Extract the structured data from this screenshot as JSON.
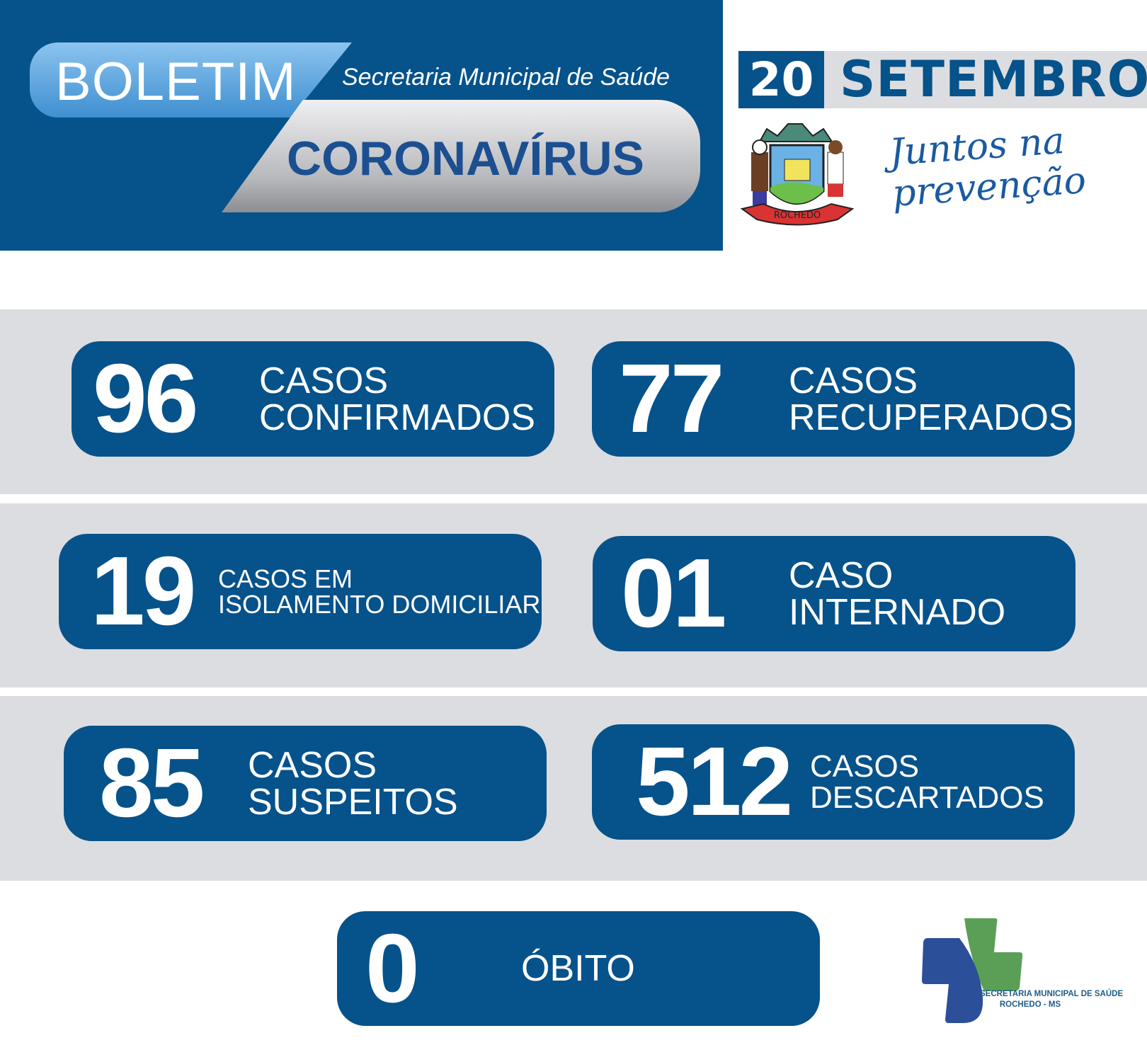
{
  "header": {
    "boletim": "BOLETIM",
    "secretaria": "Secretaria Municipal de Saúde",
    "coronavirus": "CORONAVÍRUS",
    "date_day": "20",
    "date_month": "SETEMBRO",
    "crest_text": "ROCHEDO",
    "slogan_line1": "Juntos na",
    "slogan_line2": "prevenção"
  },
  "stats": [
    {
      "value": "96",
      "line1": "CASOS",
      "line2": "CONFIRMADOS"
    },
    {
      "value": "77",
      "line1": "CASOS",
      "line2": "RECUPERADOS"
    },
    {
      "value": "19",
      "line1": "CASOS EM",
      "line2": "ISOLAMENTO DOMICILIAR"
    },
    {
      "value": "01",
      "line1": "CASO",
      "line2": "INTERNADO"
    },
    {
      "value": "85",
      "line1": "CASOS",
      "line2": "SUSPEITOS"
    },
    {
      "value": "512",
      "line1": "CASOS",
      "line2": "DESCARTADOS"
    },
    {
      "value": "0",
      "line1": "ÓBITO"
    }
  ],
  "footer_logo": {
    "line1": "SECRETARIA MUNICIPAL DE SAÚDE",
    "line2": "ROCHEDO - MS"
  },
  "colors": {
    "primary": "#06528b",
    "band": "#dcdde0",
    "logo_green": "#5a9f55",
    "logo_blue": "#2b4f98"
  }
}
